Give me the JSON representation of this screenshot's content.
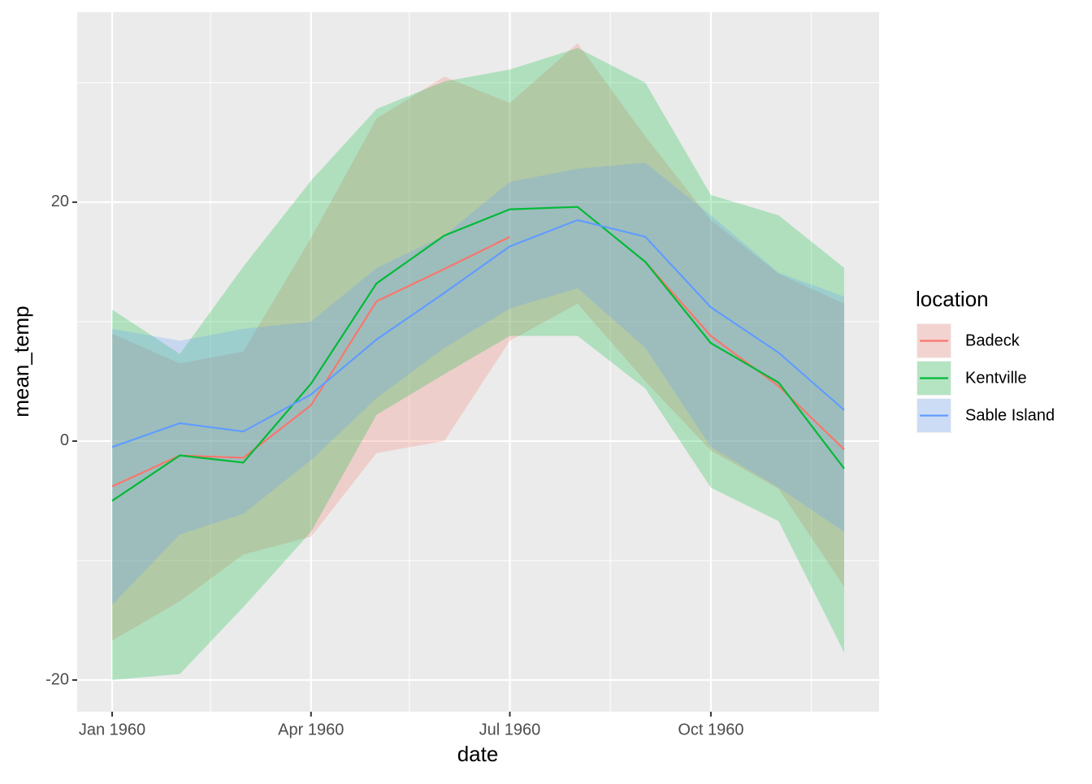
{
  "chart_data": {
    "type": "line",
    "x_label": "date",
    "y_label": "mean_temp",
    "legend_title": "location",
    "x": [
      "1960-01-01",
      "1960-02-01",
      "1960-03-01",
      "1960-04-01",
      "1960-05-01",
      "1960-06-01",
      "1960-07-01",
      "1960-08-01",
      "1960-09-01",
      "1960-10-01",
      "1960-11-01",
      "1960-12-01"
    ],
    "series": [
      {
        "name": "Badeck",
        "color": "#F8766D",
        "values": [
          -3.8,
          -1.2,
          -1.4,
          3.0,
          11.7,
          14.4,
          17.1,
          null,
          15.0,
          8.8,
          4.6,
          -0.7
        ],
        "high": [
          9.0,
          6.5,
          7.5,
          17.0,
          27.0,
          30.5,
          28.3,
          33.3,
          25.5,
          18.5,
          14.0,
          11.5
        ],
        "low": [
          -16.7,
          -13.4,
          -9.5,
          -8.0,
          -1.0,
          0.0,
          8.4,
          11.5,
          5.0,
          -0.8,
          -4.0,
          -12.2
        ]
      },
      {
        "name": "Kentville",
        "color": "#00BA38",
        "values": [
          -5.0,
          -1.2,
          -1.8,
          4.8,
          13.2,
          17.2,
          19.4,
          19.6,
          15.0,
          8.2,
          4.9,
          -2.3
        ],
        "high": [
          11.0,
          7.3,
          14.6,
          21.8,
          27.8,
          30.1,
          31.1,
          32.9,
          30.0,
          20.6,
          18.9,
          14.5
        ],
        "low": [
          -20.0,
          -19.5,
          -13.9,
          -7.6,
          2.2,
          5.6,
          8.8,
          8.8,
          4.4,
          -3.9,
          -6.7,
          -17.7
        ]
      },
      {
        "name": "Sable Island",
        "color": "#619CFF",
        "values": [
          -0.5,
          1.5,
          0.8,
          3.9,
          8.5,
          12.4,
          16.3,
          18.5,
          17.1,
          11.2,
          7.4,
          2.6
        ],
        "high": [
          9.4,
          8.4,
          9.4,
          10.0,
          14.5,
          17.2,
          21.7,
          22.8,
          23.3,
          18.9,
          14.1,
          12.1
        ],
        "low": [
          -13.7,
          -7.8,
          -6.1,
          -1.6,
          3.6,
          7.8,
          11.1,
          12.8,
          7.8,
          -0.5,
          -3.9,
          -7.6
        ]
      }
    ],
    "xlim": [
      "1959-12-16",
      "1960-12-17"
    ],
    "xticks": [
      {
        "value": "1960-01-01",
        "label": "Jan 1960"
      },
      {
        "value": "1960-04-01",
        "label": "Apr 1960"
      },
      {
        "value": "1960-07-01",
        "label": "Jul 1960"
      },
      {
        "value": "1960-10-01",
        "label": "Oct 1960"
      }
    ],
    "xminor": [
      "1960-02-15",
      "1960-05-16",
      "1960-08-16",
      "1960-11-16"
    ],
    "ylim": [
      -22.65,
      35.9
    ],
    "yticks": [
      -20,
      0,
      20
    ],
    "yminor": [
      -10,
      10,
      30
    ],
    "grid": true,
    "legend": "right",
    "ribbon_opacity": 0.25
  }
}
